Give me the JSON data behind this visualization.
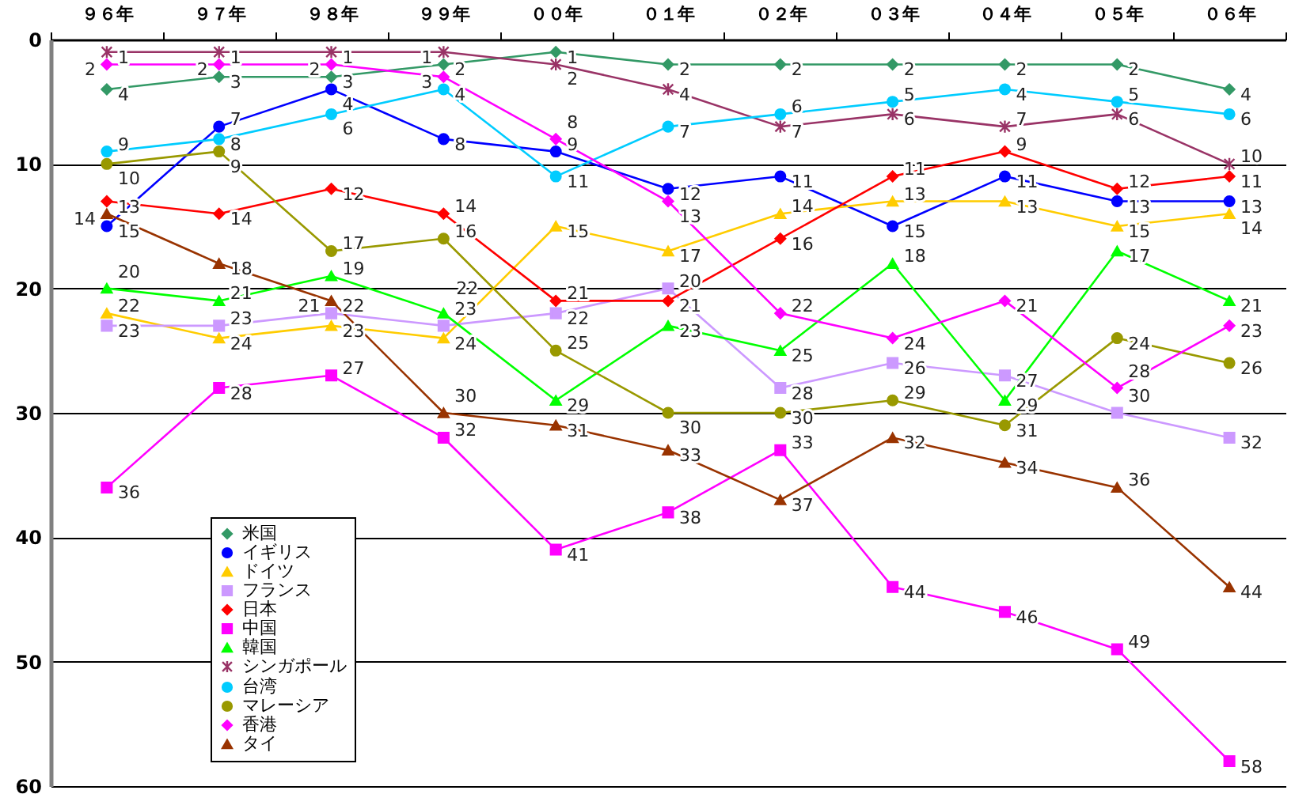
{
  "chart_data": {
    "type": "line",
    "categories": [
      "９６年",
      "９７年",
      "９８年",
      "９９年",
      "００年",
      "０１年",
      "０２年",
      "０３年",
      "０４年",
      "０５年",
      "０６年"
    ],
    "ylim": [
      60,
      0
    ],
    "yticks": [
      0,
      10,
      20,
      30,
      40,
      50,
      60
    ],
    "grid": "y",
    "legend": "bottom left",
    "data_labels": true,
    "series": [
      {
        "name": "米国",
        "color": "#339966",
        "marker": "diamond",
        "values": [
          4,
          3,
          3,
          2,
          1,
          2,
          2,
          2,
          2,
          2,
          4
        ]
      },
      {
        "name": "イギリス",
        "color": "#0000ff",
        "marker": "circle",
        "values": [
          15,
          7,
          4,
          8,
          9,
          12,
          11,
          15,
          11,
          13,
          13
        ]
      },
      {
        "name": "ドイツ",
        "color": "#ffcc00",
        "marker": "triangle",
        "values": [
          22,
          24,
          23,
          24,
          15,
          17,
          14,
          13,
          13,
          15,
          14
        ]
      },
      {
        "name": "フランス",
        "color": "#cc99ff",
        "marker": "square",
        "values": [
          23,
          23,
          22,
          23,
          22,
          20,
          28,
          26,
          27,
          30,
          32
        ]
      },
      {
        "name": "日本",
        "color": "#ff0000",
        "marker": "diamond",
        "values": [
          13,
          14,
          12,
          14,
          21,
          21,
          16,
          11,
          9,
          12,
          11
        ]
      },
      {
        "name": "中国",
        "color": "#ff00ff",
        "marker": "square",
        "values": [
          36,
          28,
          27,
          32,
          41,
          38,
          33,
          44,
          46,
          49,
          58
        ]
      },
      {
        "name": "韓国",
        "color": "#00ff00",
        "marker": "triangle",
        "values": [
          20,
          21,
          19,
          22,
          29,
          23,
          25,
          18,
          29,
          17,
          21
        ]
      },
      {
        "name": "シンガポール",
        "color": "#993366",
        "marker": "cross",
        "values": [
          1,
          1,
          1,
          1,
          2,
          4,
          7,
          6,
          7,
          6,
          10
        ]
      },
      {
        "name": "台湾",
        "color": "#00ccff",
        "marker": "circle",
        "values": [
          9,
          8,
          6,
          4,
          11,
          7,
          6,
          5,
          4,
          5,
          6
        ]
      },
      {
        "name": "マレーシア",
        "color": "#999900",
        "marker": "circle",
        "values": [
          10,
          9,
          17,
          16,
          25,
          30,
          30,
          29,
          31,
          24,
          26
        ]
      },
      {
        "name": "香港",
        "color": "#ff00ff",
        "marker": "diamond",
        "values": [
          2,
          2,
          2,
          3,
          8,
          13,
          22,
          24,
          21,
          28,
          23
        ]
      },
      {
        "name": "タイ",
        "color": "#993300",
        "marker": "triangle",
        "values": [
          14,
          18,
          21,
          30,
          31,
          33,
          37,
          32,
          34,
          36,
          44
        ]
      }
    ]
  }
}
